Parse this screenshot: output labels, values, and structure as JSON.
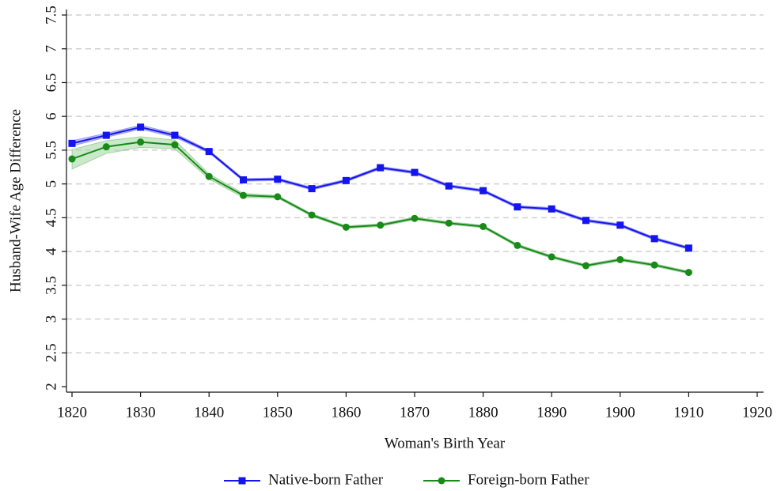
{
  "chart_data": {
    "type": "line",
    "x_label": "Woman's Birth Year",
    "y_label": "Husband-Wife Age Difference",
    "x": [
      1820,
      1825,
      1830,
      1835,
      1840,
      1845,
      1850,
      1855,
      1860,
      1865,
      1870,
      1875,
      1880,
      1885,
      1890,
      1895,
      1900,
      1905,
      1910
    ],
    "series": [
      {
        "name": "Native-born Father",
        "color": "#1414f0",
        "marker": "square",
        "band_color": "#8c8cf0",
        "values": [
          5.6,
          5.72,
          5.84,
          5.72,
          5.48,
          5.06,
          5.07,
          4.93,
          5.05,
          5.24,
          5.17,
          4.97,
          4.9,
          4.66,
          4.63,
          4.46,
          4.39,
          4.19,
          4.05
        ],
        "ci_lower": [
          5.56,
          5.69,
          5.81,
          5.69,
          5.46,
          5.04,
          5.05,
          4.91,
          5.03,
          5.22,
          5.15,
          4.95,
          4.88,
          4.64,
          4.61,
          4.44,
          4.37,
          4.17,
          4.03
        ],
        "ci_upper": [
          5.64,
          5.75,
          5.87,
          5.75,
          5.5,
          5.08,
          5.09,
          4.95,
          5.07,
          5.26,
          5.19,
          4.99,
          4.92,
          4.68,
          4.65,
          4.48,
          4.41,
          4.21,
          4.07
        ]
      },
      {
        "name": "Foreign-born Father",
        "color": "#178a17",
        "marker": "circle",
        "band_color": "#a6d8a6",
        "values": [
          5.37,
          5.55,
          5.62,
          5.58,
          5.11,
          4.83,
          4.81,
          4.54,
          4.36,
          4.39,
          4.49,
          4.42,
          4.37,
          4.09,
          3.92,
          3.79,
          3.88,
          3.8,
          3.69
        ],
        "ci_lower": [
          5.22,
          5.45,
          5.54,
          5.52,
          5.07,
          4.8,
          4.79,
          4.52,
          4.34,
          4.37,
          4.47,
          4.4,
          4.35,
          4.07,
          3.9,
          3.77,
          3.86,
          3.78,
          3.67
        ],
        "ci_upper": [
          5.51,
          5.64,
          5.7,
          5.65,
          5.15,
          4.86,
          4.83,
          4.56,
          4.38,
          4.41,
          4.51,
          4.44,
          4.39,
          4.11,
          3.94,
          3.81,
          3.9,
          3.82,
          3.71
        ]
      }
    ],
    "xlim": [
      1820,
      1920
    ],
    "xticks": [
      1820,
      1830,
      1840,
      1850,
      1860,
      1870,
      1880,
      1890,
      1900,
      1910,
      1920
    ],
    "ylim": [
      2,
      7.5
    ],
    "yticks": [
      2,
      2.5,
      3,
      3.5,
      4,
      4.5,
      5,
      5.5,
      6,
      6.5,
      7,
      7.5
    ],
    "grid": true,
    "legend": "bottom"
  }
}
